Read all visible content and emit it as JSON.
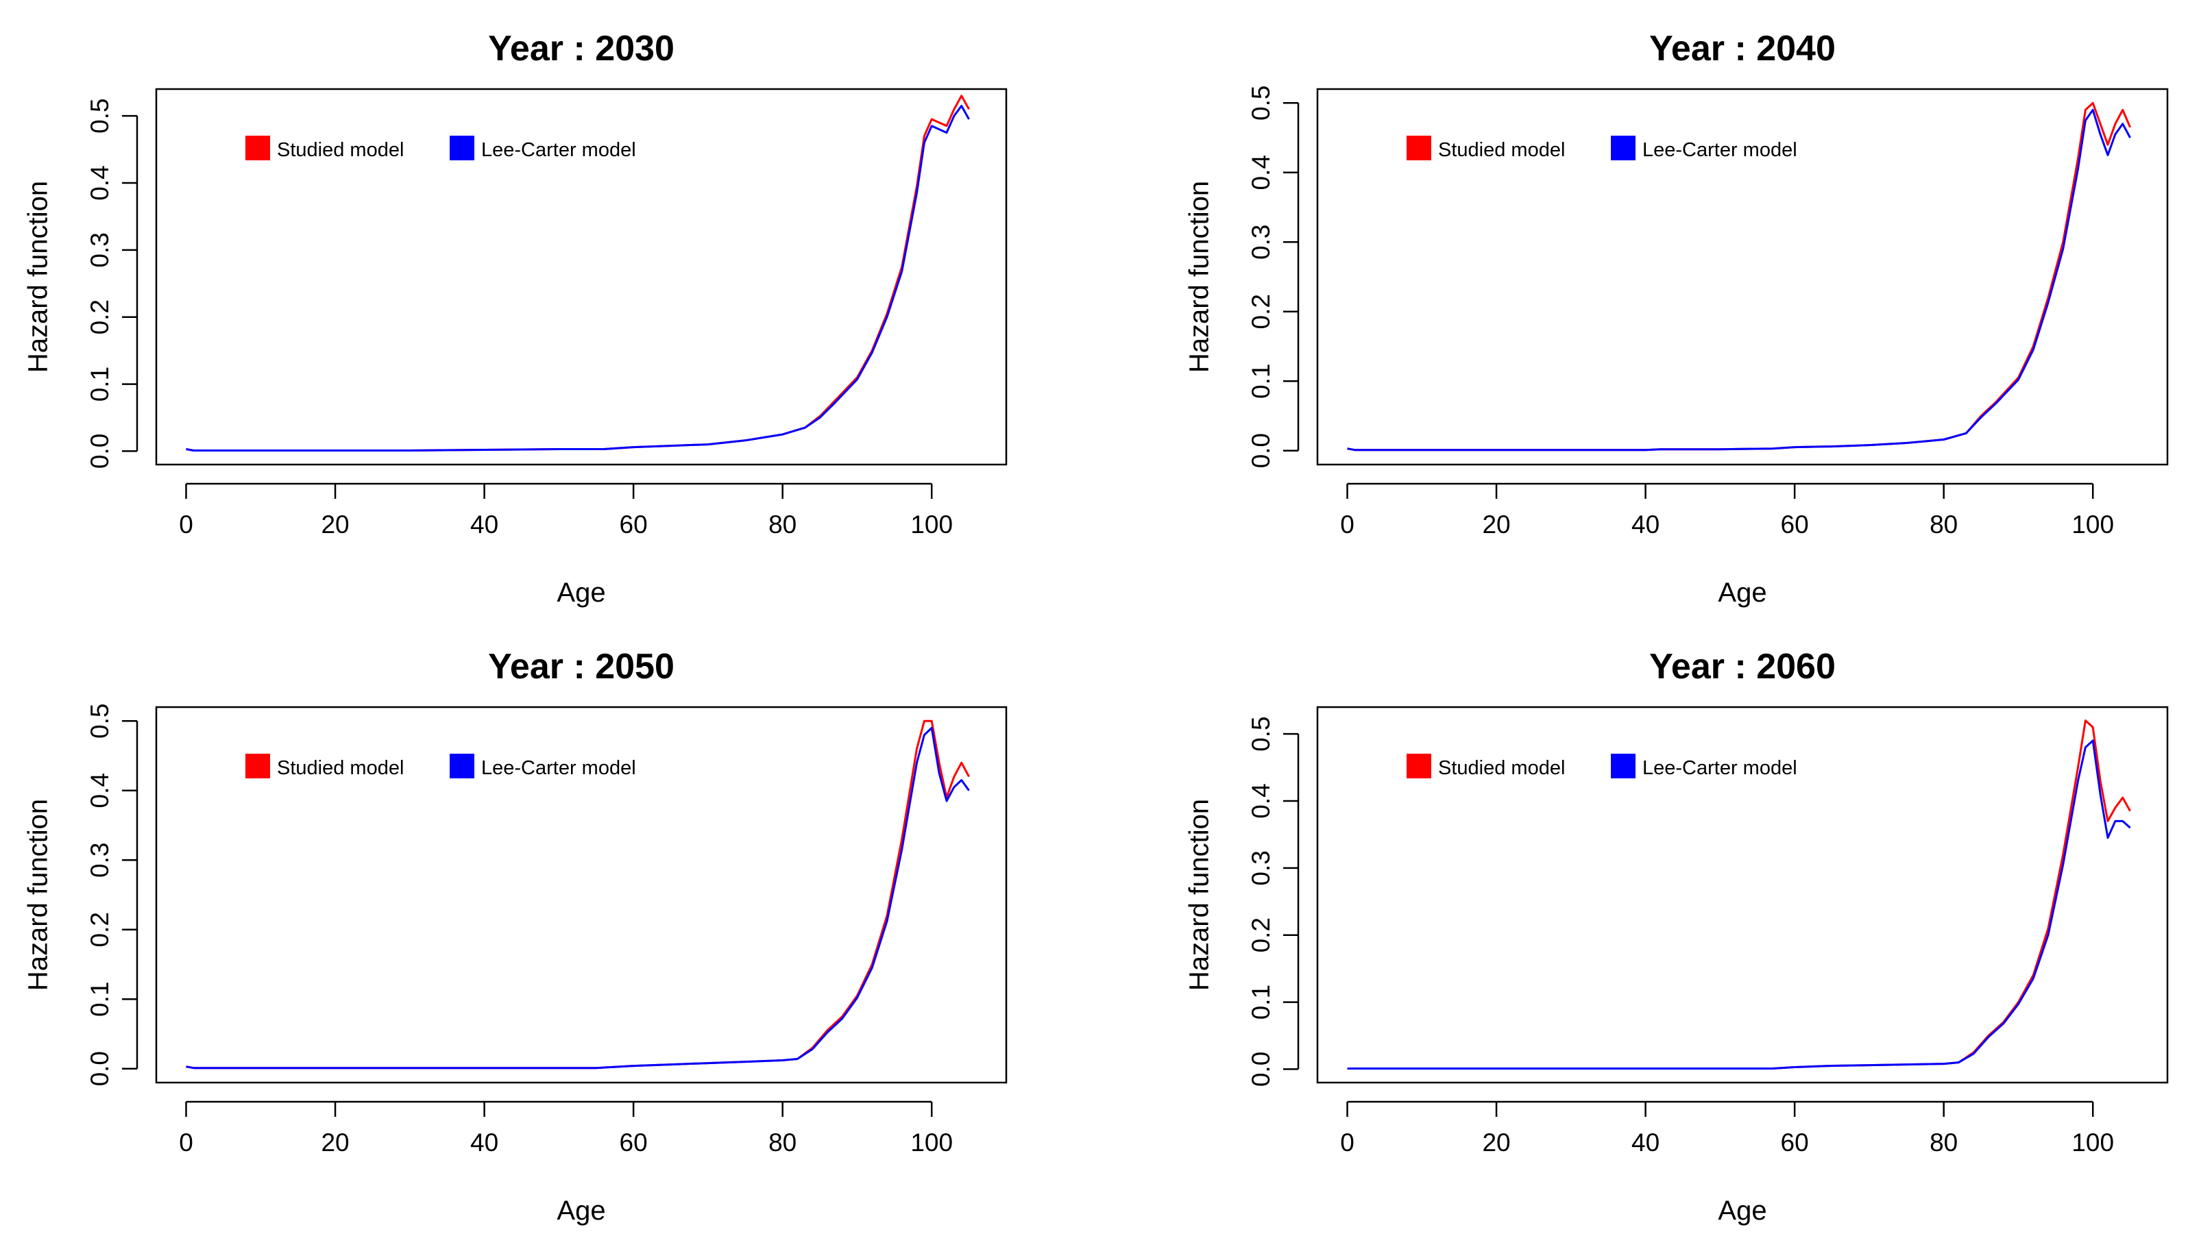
{
  "chart_data": [
    {
      "type": "line",
      "title": "Year : 2030",
      "xlabel": "Age",
      "ylabel": "Hazard function",
      "xlim": [
        -4,
        110
      ],
      "ylim": [
        -0.02,
        0.54
      ],
      "xticks": [
        "0",
        "20",
        "40",
        "60",
        "80",
        "100"
      ],
      "yticks": [
        "0.0",
        "0.1",
        "0.2",
        "0.3",
        "0.4",
        "0.5"
      ],
      "legend_position": "top-left",
      "series": [
        {
          "name": "Studied model",
          "color": "#ff0000",
          "x": [
            0,
            1,
            10,
            20,
            30,
            40,
            50,
            56,
            60,
            65,
            70,
            75,
            80,
            83,
            85,
            87,
            90,
            92,
            94,
            96,
            98,
            99,
            100,
            101,
            102,
            103,
            104,
            105
          ],
          "y": [
            0.003,
            0.001,
            0.001,
            0.001,
            0.001,
            0.002,
            0.003,
            0.003,
            0.006,
            0.008,
            0.01,
            0.016,
            0.025,
            0.035,
            0.052,
            0.075,
            0.11,
            0.15,
            0.205,
            0.275,
            0.395,
            0.47,
            0.495,
            0.49,
            0.485,
            0.51,
            0.53,
            0.51
          ]
        },
        {
          "name": "Lee-Carter model",
          "color": "#0000ff",
          "x": [
            0,
            1,
            10,
            20,
            30,
            40,
            50,
            56,
            60,
            65,
            70,
            75,
            80,
            83,
            85,
            87,
            90,
            92,
            94,
            96,
            98,
            99,
            100,
            101,
            102,
            103,
            104,
            105
          ],
          "y": [
            0.003,
            0.001,
            0.001,
            0.001,
            0.001,
            0.002,
            0.003,
            0.003,
            0.006,
            0.008,
            0.01,
            0.016,
            0.025,
            0.035,
            0.05,
            0.072,
            0.107,
            0.147,
            0.2,
            0.268,
            0.385,
            0.46,
            0.485,
            0.48,
            0.475,
            0.5,
            0.515,
            0.495
          ]
        }
      ]
    },
    {
      "type": "line",
      "title": "Year : 2040",
      "xlabel": "Age",
      "ylabel": "Hazard function",
      "xlim": [
        -4,
        110
      ],
      "ylim": [
        -0.02,
        0.52
      ],
      "xticks": [
        "0",
        "20",
        "40",
        "60",
        "80",
        "100"
      ],
      "yticks": [
        "0.0",
        "0.1",
        "0.2",
        "0.3",
        "0.4",
        "0.5"
      ],
      "legend_position": "top-left",
      "series": [
        {
          "name": "Studied model",
          "color": "#ff0000",
          "x": [
            0,
            1,
            10,
            20,
            30,
            40,
            42,
            50,
            57,
            60,
            65,
            70,
            75,
            80,
            83,
            85,
            87,
            90,
            92,
            94,
            96,
            98,
            99,
            100,
            101,
            102,
            103,
            104,
            105
          ],
          "y": [
            0.003,
            0.001,
            0.001,
            0.001,
            0.001,
            0.001,
            0.002,
            0.002,
            0.003,
            0.005,
            0.006,
            0.008,
            0.011,
            0.016,
            0.025,
            0.05,
            0.07,
            0.105,
            0.15,
            0.22,
            0.3,
            0.42,
            0.49,
            0.5,
            0.47,
            0.44,
            0.47,
            0.49,
            0.465
          ]
        },
        {
          "name": "Lee-Carter model",
          "color": "#0000ff",
          "x": [
            0,
            1,
            10,
            20,
            30,
            40,
            42,
            50,
            57,
            60,
            65,
            70,
            75,
            80,
            83,
            85,
            87,
            90,
            92,
            94,
            96,
            98,
            99,
            100,
            101,
            102,
            103,
            104,
            105
          ],
          "y": [
            0.003,
            0.001,
            0.001,
            0.001,
            0.001,
            0.001,
            0.002,
            0.002,
            0.003,
            0.005,
            0.006,
            0.008,
            0.011,
            0.016,
            0.025,
            0.048,
            0.068,
            0.102,
            0.145,
            0.213,
            0.29,
            0.405,
            0.475,
            0.49,
            0.455,
            0.425,
            0.455,
            0.47,
            0.45
          ]
        }
      ]
    },
    {
      "type": "line",
      "title": "Year : 2050",
      "xlabel": "Age",
      "ylabel": "Hazard function",
      "xlim": [
        -4,
        110
      ],
      "ylim": [
        -0.02,
        0.52
      ],
      "xticks": [
        "0",
        "20",
        "40",
        "60",
        "80",
        "100"
      ],
      "yticks": [
        "0.0",
        "0.1",
        "0.2",
        "0.3",
        "0.4",
        "0.5"
      ],
      "legend_position": "top-left",
      "series": [
        {
          "name": "Studied model",
          "color": "#ff0000",
          "x": [
            0,
            1,
            10,
            20,
            30,
            40,
            50,
            55,
            60,
            65,
            70,
            75,
            80,
            82,
            84,
            86,
            88,
            90,
            92,
            94,
            96,
            98,
            99,
            100,
            101,
            102,
            103,
            104,
            105
          ],
          "y": [
            0.003,
            0.001,
            0.001,
            0.001,
            0.001,
            0.001,
            0.001,
            0.001,
            0.004,
            0.006,
            0.008,
            0.01,
            0.012,
            0.014,
            0.03,
            0.055,
            0.075,
            0.105,
            0.15,
            0.22,
            0.33,
            0.46,
            0.5,
            0.5,
            0.44,
            0.39,
            0.42,
            0.44,
            0.42
          ]
        },
        {
          "name": "Lee-Carter model",
          "color": "#0000ff",
          "x": [
            0,
            1,
            10,
            20,
            30,
            40,
            50,
            55,
            60,
            65,
            70,
            75,
            80,
            82,
            84,
            86,
            88,
            90,
            92,
            94,
            96,
            98,
            99,
            100,
            101,
            102,
            103,
            104,
            105
          ],
          "y": [
            0.003,
            0.001,
            0.001,
            0.001,
            0.001,
            0.001,
            0.001,
            0.001,
            0.004,
            0.006,
            0.008,
            0.01,
            0.012,
            0.014,
            0.028,
            0.052,
            0.072,
            0.102,
            0.145,
            0.212,
            0.315,
            0.44,
            0.48,
            0.49,
            0.425,
            0.385,
            0.405,
            0.415,
            0.4
          ]
        }
      ]
    },
    {
      "type": "line",
      "title": "Year : 2060",
      "xlabel": "Age",
      "ylabel": "Hazard function",
      "xlim": [
        -4,
        110
      ],
      "ylim": [
        -0.02,
        0.54
      ],
      "xticks": [
        "0",
        "20",
        "40",
        "60",
        "80",
        "100"
      ],
      "yticks": [
        "0.0",
        "0.1",
        "0.2",
        "0.3",
        "0.4",
        "0.5"
      ],
      "legend_position": "top-left",
      "series": [
        {
          "name": "Studied model",
          "color": "#ff0000",
          "x": [
            0,
            1,
            10,
            20,
            30,
            40,
            50,
            57,
            60,
            65,
            70,
            75,
            80,
            82,
            84,
            86,
            88,
            90,
            92,
            94,
            96,
            98,
            99,
            100,
            101,
            102,
            103,
            104,
            105
          ],
          "y": [
            0.001,
            0.001,
            0.001,
            0.001,
            0.001,
            0.001,
            0.001,
            0.001,
            0.003,
            0.005,
            0.006,
            0.007,
            0.008,
            0.01,
            0.025,
            0.05,
            0.07,
            0.1,
            0.14,
            0.21,
            0.32,
            0.45,
            0.52,
            0.51,
            0.43,
            0.37,
            0.39,
            0.405,
            0.385
          ]
        },
        {
          "name": "Lee-Carter model",
          "color": "#0000ff",
          "x": [
            0,
            1,
            10,
            20,
            30,
            40,
            50,
            57,
            60,
            65,
            70,
            75,
            80,
            82,
            84,
            86,
            88,
            90,
            92,
            94,
            96,
            98,
            99,
            100,
            101,
            102,
            103,
            104,
            105
          ],
          "y": [
            0.001,
            0.001,
            0.001,
            0.001,
            0.001,
            0.001,
            0.001,
            0.001,
            0.003,
            0.005,
            0.006,
            0.007,
            0.008,
            0.01,
            0.023,
            0.048,
            0.068,
            0.097,
            0.135,
            0.2,
            0.305,
            0.43,
            0.48,
            0.49,
            0.41,
            0.345,
            0.37,
            0.37,
            0.36
          ]
        }
      ]
    }
  ]
}
